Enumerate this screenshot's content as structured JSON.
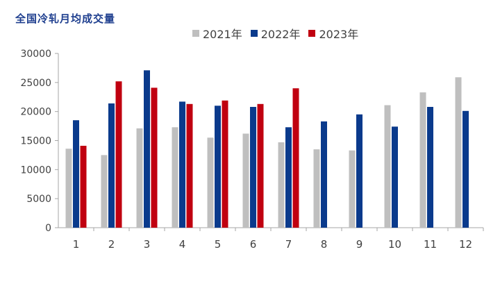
{
  "chart_data": {
    "type": "bar",
    "title": "全国冷轧月均成交量",
    "xlabel": "",
    "ylabel": "",
    "categories": [
      "1",
      "2",
      "3",
      "4",
      "5",
      "6",
      "7",
      "8",
      "9",
      "10",
      "11",
      "12"
    ],
    "ylim": [
      0,
      30000
    ],
    "yticks": [
      0,
      5000,
      10000,
      15000,
      20000,
      25000,
      30000
    ],
    "grid": false,
    "legend_position": "top-center",
    "series": [
      {
        "name": "2021年",
        "color": "#bfbfbf",
        "values": [
          13600,
          12500,
          17100,
          17300,
          15500,
          16200,
          14700,
          13500,
          13300,
          21100,
          23300,
          25900
        ]
      },
      {
        "name": "2022年",
        "color": "#0a3a8c",
        "values": [
          18500,
          21400,
          27100,
          21700,
          21000,
          20800,
          17300,
          18300,
          19500,
          17400,
          20800,
          20100
        ]
      },
      {
        "name": "2023年",
        "color": "#c00010",
        "values": [
          14100,
          25200,
          24100,
          21300,
          21900,
          21300,
          24000,
          null,
          null,
          null,
          null,
          null
        ]
      }
    ]
  }
}
